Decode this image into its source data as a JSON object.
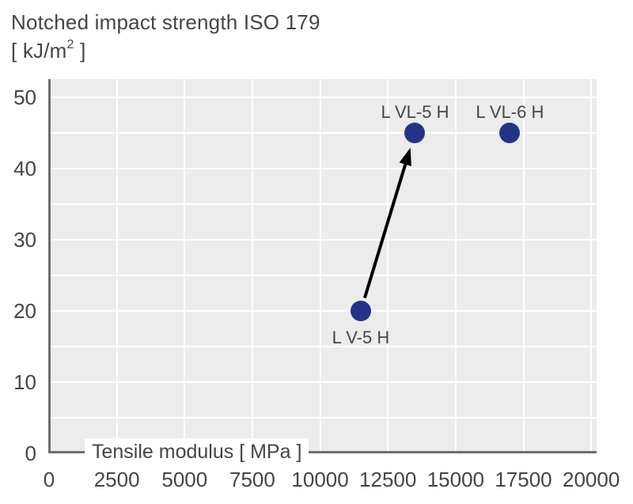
{
  "title": {
    "line1": "Notched impact strength ISO 179",
    "units_prefix": "[ kJ/m",
    "units_sup": "2",
    "units_suffix": " ]"
  },
  "chart_data": {
    "type": "scatter",
    "title": "Notched impact strength ISO 179 [ kJ/m2 ]",
    "xlabel": "Tensile modulus [ MPa ]",
    "ylabel": "Notched impact strength ISO 179 [ kJ/m2 ]",
    "xlim": [
      0,
      20000
    ],
    "ylim": [
      0,
      50
    ],
    "xticks": [
      0,
      2500,
      5000,
      7500,
      10000,
      12500,
      15000,
      17500,
      20000
    ],
    "yticks": [
      0,
      10,
      20,
      30,
      40,
      50
    ],
    "x_gridline_step": 2500,
    "y_gridline_step": 5,
    "grid": true,
    "legend": "none",
    "points": [
      {
        "label": "L V-5 H",
        "x": 11500,
        "y": 20,
        "label_position": "below"
      },
      {
        "label": "L VL-5 H",
        "x": 13500,
        "y": 45,
        "label_position": "above"
      },
      {
        "label": "L VL-6 H",
        "x": 17000,
        "y": 45,
        "label_position": "above"
      }
    ],
    "annotations": [
      {
        "type": "arrow",
        "from_label": "L V-5 H",
        "to_label": "L VL-5 H",
        "color": "#000000"
      }
    ],
    "colors": {
      "point": "#253387",
      "plot_bg": "#ECECEC",
      "grid": "#FFFFFF",
      "axis": "#6E6E6E",
      "text": "#454545",
      "arrow": "#000000"
    }
  }
}
